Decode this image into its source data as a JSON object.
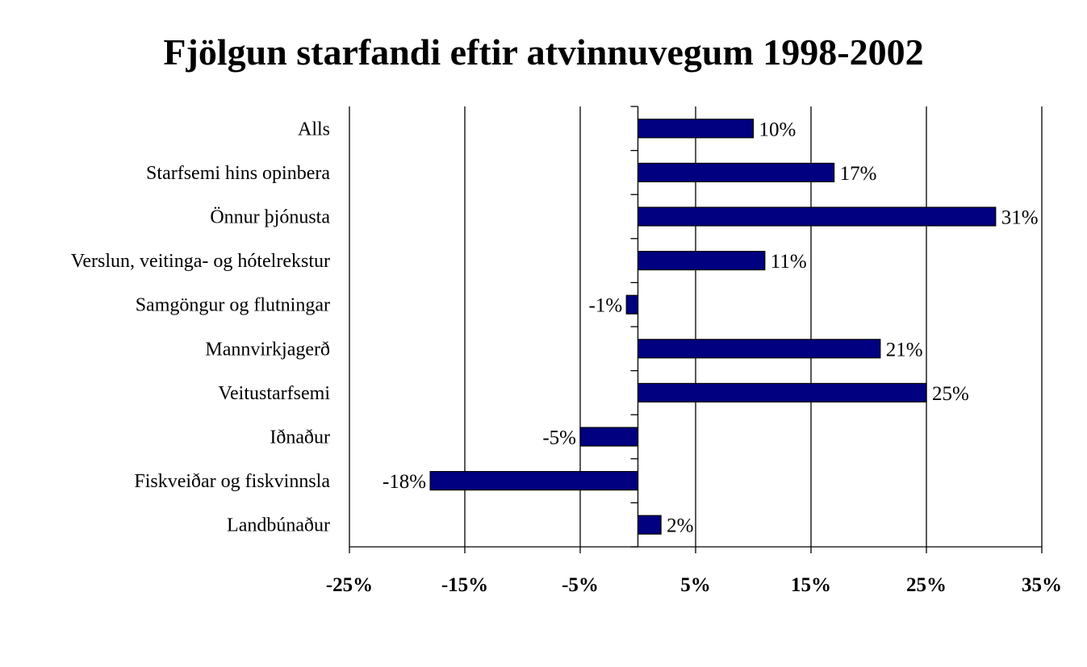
{
  "chart_data": {
    "type": "bar",
    "orientation": "horizontal",
    "title": "Fjölgun starfandi eftir atvinnuvegum 1998-2002",
    "xlabel": "",
    "ylabel": "",
    "categories": [
      "Alls",
      "Starfsemi hins opinbera",
      "Önnur þjónusta",
      "Verslun, veitinga- og hótelrekstur",
      "Samgöngur og flutningar",
      "Mannvirkjagerð",
      "Veitustarfsemi",
      "Iðnaður",
      "Fiskveiðar og fiskvinnsla",
      "Landbúnaður"
    ],
    "values": [
      10,
      17,
      31,
      11,
      -1,
      21,
      25,
      -5,
      -18,
      2
    ],
    "data_labels": [
      "10%",
      "17%",
      "31%",
      "11%",
      "-1%",
      "21%",
      "25%",
      "-5%",
      "-18%",
      "2%"
    ],
    "xlim": [
      -25,
      35
    ],
    "x_ticks": [
      -25,
      -15,
      -5,
      5,
      15,
      25,
      35
    ],
    "x_tick_labels": [
      "-25%",
      "-15%",
      "-5%",
      "5%",
      "15%",
      "25%",
      "35%"
    ],
    "grid": "vertical",
    "legend": "none",
    "bar_color": "#000080"
  }
}
